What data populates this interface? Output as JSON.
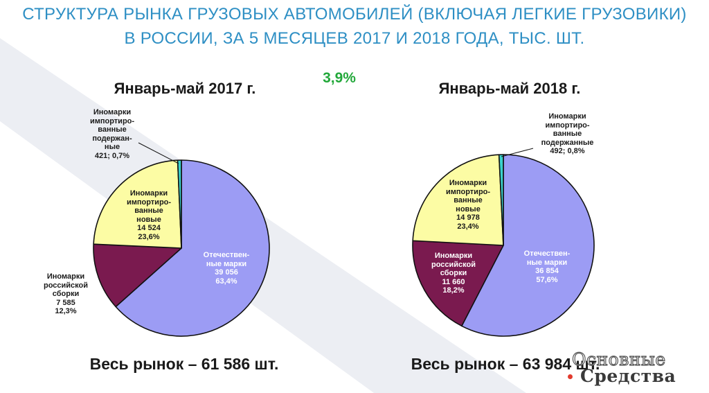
{
  "title": {
    "line1": "СТРУКТУРА РЫНКА ГРУЗОВЫХ АВТОМОБИЛЕЙ (ВКЛЮЧАЯ ЛЕГКИЕ ГРУЗОВИКИ)",
    "line2": "В РОССИИ, ЗА 5 МЕСЯЦЕВ 2017 И 2018 ГОДА, ТЫС. ШТ."
  },
  "growth_label": "3,9%",
  "colors": {
    "title": "#2e8fc4",
    "growth": "#22a83a",
    "domestic": "#9c9cf4",
    "russian_assembly": "#7a1a4f",
    "imported_new": "#fcfca4",
    "imported_used": "#3ad2cc"
  },
  "chart_data": [
    {
      "type": "pie",
      "title": "Январь-май 2017 г.",
      "total_label": "Весь рынок – 61 586 шт.",
      "slices": [
        {
          "lines": [
            "Отечествен-",
            "ные марки",
            "39 056",
            "63,4%"
          ],
          "value": 39056,
          "percent": 63.4,
          "color": "#9c9cf4"
        },
        {
          "lines": [
            "Иномарки",
            "российской",
            "сборки",
            "7 585",
            "12,3%"
          ],
          "value": 7585,
          "percent": 12.3,
          "color": "#7a1a4f"
        },
        {
          "lines": [
            "Иномарки",
            "импортиро-",
            "ванные",
            "новые",
            "14 524",
            "23,6%"
          ],
          "value": 14524,
          "percent": 23.6,
          "color": "#fcfca4"
        },
        {
          "lines": [
            "Иномарки",
            "импортиро-",
            "ванные",
            "подержан-",
            "ные",
            "421; 0,7%"
          ],
          "value": 421,
          "percent": 0.7,
          "color": "#3ad2cc"
        }
      ]
    },
    {
      "type": "pie",
      "title": "Январь-май 2018 г.",
      "total_label": "Весь рынок – 63 984 шт.",
      "slices": [
        {
          "lines": [
            "Отечествен-",
            "ные марки",
            "36 854",
            "57,6%"
          ],
          "value": 36854,
          "percent": 57.6,
          "color": "#9c9cf4"
        },
        {
          "lines": [
            "Иномарки",
            "российской",
            "сборки",
            "11 660",
            "18,2%"
          ],
          "value": 11660,
          "percent": 18.2,
          "color": "#7a1a4f"
        },
        {
          "lines": [
            "Иномарки",
            "импортиро-",
            "ванные",
            "новые",
            "14 978",
            "23,4%"
          ],
          "value": 14978,
          "percent": 23.4,
          "color": "#fcfca4"
        },
        {
          "lines": [
            "Иномарки",
            "импортиро-",
            "ванные",
            "подержанные",
            "492; 0,8%"
          ],
          "value": 492,
          "percent": 0.8,
          "color": "#3ad2cc"
        }
      ]
    }
  ],
  "logo": {
    "line1": "Основные",
    "line2": "Средства"
  }
}
